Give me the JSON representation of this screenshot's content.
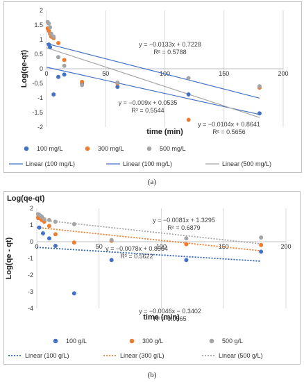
{
  "chart_data": [
    {
      "panel": "(a)",
      "type": "scatter",
      "title": "",
      "xlabel": "time (min)",
      "ylabel": "Log(qe-qt)",
      "xlim": [
        0,
        200
      ],
      "ylim": [
        -2,
        2
      ],
      "x_ticks": [
        "0",
        "50",
        "100",
        "150",
        "200"
      ],
      "y_ticks": [
        "2",
        "1.5",
        "1",
        "0.5",
        "0",
        "-0.5",
        "-1",
        "-1.5",
        "-2"
      ],
      "grid": "vertical",
      "legend_position": "bottom",
      "series": [
        {
          "name": "100 mg/L",
          "color": "#4472c4",
          "x": [
            2,
            3,
            6,
            10,
            15,
            30,
            60,
            120,
            180
          ],
          "y": [
            0.83,
            0.74,
            -0.88,
            -0.28,
            -0.2,
            -0.5,
            -0.62,
            -0.88,
            -1.53
          ]
        },
        {
          "name": "300 mg/L",
          "color": "#ed7d31",
          "x": [
            1,
            2,
            3,
            4,
            6,
            10,
            15,
            30,
            60,
            120,
            180
          ],
          "y": [
            1.38,
            1.3,
            1.2,
            1.1,
            1.05,
            0.88,
            0.3,
            -0.45,
            -0.5,
            -1.75,
            -0.65
          ]
        },
        {
          "name": "500 mg/L",
          "color": "#a5a5a5",
          "x": [
            1,
            2,
            3,
            4,
            6,
            10,
            15,
            30,
            60,
            120,
            180
          ],
          "y": [
            1.6,
            1.55,
            1.42,
            1.2,
            1.1,
            0.4,
            0.1,
            -0.56,
            -0.47,
            -0.32,
            -0.6
          ]
        }
      ],
      "trendlines": [
        {
          "name": "Linear (100 mg/L)",
          "color": "#4472c4",
          "dash": false,
          "slope": -0.0104,
          "intercept": 0.8641,
          "equation": "y = −0.0104x + 0.8641",
          "r2": "R² = 0.5656"
        },
        {
          "name": "Linear (100 mg/L)",
          "color": "#4472c4",
          "dash": false,
          "slope": -0.009,
          "intercept": 0.0535,
          "equation": "y = −0.009x + 0.0535",
          "r2": "R² = 0.5544"
        },
        {
          "name": "Linear (500 mg/L)",
          "color": "#a5a5a5",
          "dash": false,
          "slope": -0.0133,
          "intercept": 0.7228,
          "equation": "y = −0.0133x + 0.7228",
          "r2": "R² = 0.5788"
        }
      ]
    },
    {
      "panel": "(b)",
      "type": "scatter",
      "title": "Log(qe-qt)",
      "xlabel": "time (min)",
      "ylabel": "Log(qe - qt)",
      "xlim": [
        0,
        200
      ],
      "ylim": [
        -4,
        2
      ],
      "x_ticks": [
        "0",
        "50",
        "100",
        "150",
        "200"
      ],
      "y_ticks": [
        "2",
        "1",
        "0",
        "-1",
        "-2",
        "-3",
        "-4"
      ],
      "grid": "vertical",
      "legend_position": "bottom",
      "series": [
        {
          "name": "100 g/L",
          "color": "#4472c4",
          "x": [
            2,
            5,
            10,
            15,
            30,
            60,
            120,
            180
          ],
          "y": [
            0.85,
            0.5,
            0.2,
            -0.25,
            -3.1,
            -1.1,
            -1.1,
            -0.6
          ]
        },
        {
          "name": "300 g/L",
          "color": "#ed7d31",
          "x": [
            1,
            2,
            4,
            6,
            10,
            15,
            30,
            60,
            120,
            180
          ],
          "y": [
            1.45,
            1.4,
            1.3,
            1.2,
            0.95,
            0.45,
            -0.05,
            0.05,
            -0.15,
            -0.2
          ]
        },
        {
          "name": "500 g/L",
          "color": "#a5a5a5",
          "x": [
            1,
            2,
            3,
            4,
            6,
            10,
            15,
            30,
            60,
            120,
            180
          ],
          "y": [
            1.65,
            1.62,
            1.55,
            1.5,
            1.35,
            1.3,
            1.2,
            1.05,
            0.1,
            0.2,
            0.25
          ]
        }
      ],
      "trendlines": [
        {
          "name": "Linear (100 g/L)",
          "color": "#2e5fbf",
          "dash": true,
          "slope": -0.0046,
          "intercept": -0.3402,
          "equation": "y = −0.0046x − 0.3402",
          "r2": "R² = 0.0565"
        },
        {
          "name": "Linear (300 g/L)",
          "color": "#ed7d31",
          "dash": true,
          "slope": -0.0078,
          "intercept": 0.8564,
          "equation": "y = −0.0078x + 0.8564",
          "r2": "R² = 0.5622"
        },
        {
          "name": "Linear (500 g/L)",
          "color": "#a5a5a5",
          "dash": true,
          "slope": -0.0081,
          "intercept": 1.3295,
          "equation": "y = −0.0081x + 1.3295",
          "r2": "R² = 0.6879"
        }
      ]
    }
  ]
}
